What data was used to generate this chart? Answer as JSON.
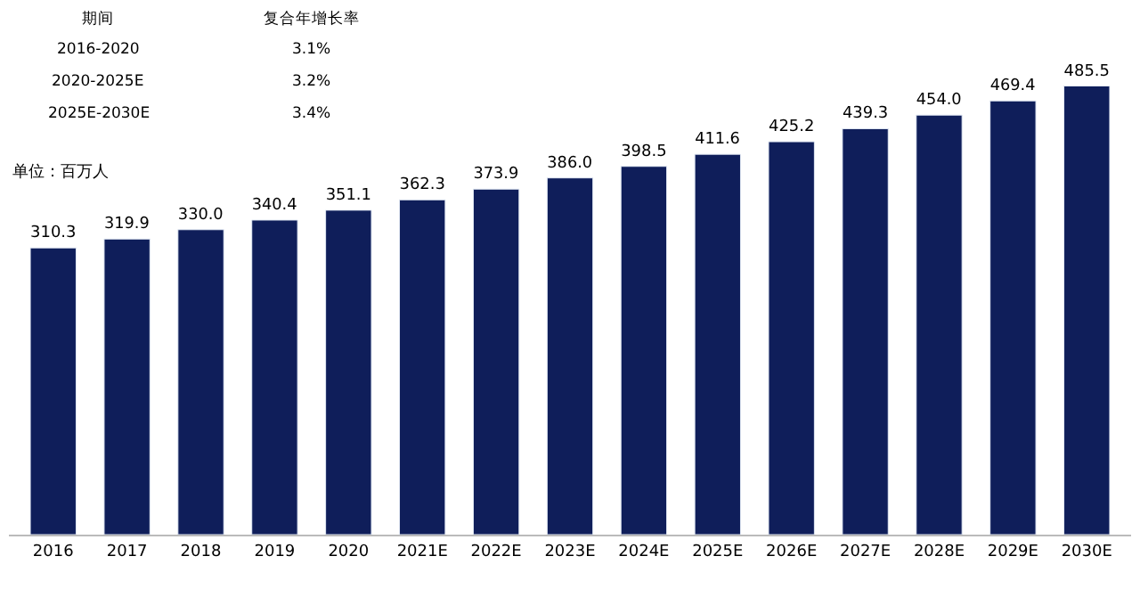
{
  "chart_data": {
    "type": "bar",
    "categories": [
      "2016",
      "2017",
      "2018",
      "2019",
      "2020",
      "2021E",
      "2022E",
      "2023E",
      "2024E",
      "2025E",
      "2026E",
      "2027E",
      "2028E",
      "2029E",
      "2030E"
    ],
    "values": [
      310.3,
      319.9,
      330.0,
      340.4,
      351.1,
      362.3,
      373.9,
      386.0,
      398.5,
      411.6,
      425.2,
      439.3,
      454.0,
      469.4,
      485.5
    ],
    "color": "#0f1e5a",
    "value_labels": [
      "310.3",
      "319.9",
      "330.0",
      "340.4",
      "351.1",
      "362.3",
      "373.9",
      "386.0",
      "398.5",
      "411.6",
      "425.2",
      "439.3",
      "454.0",
      "469.4",
      "485.5"
    ],
    "tick_labels": "x",
    "annotations": [
      "期间",
      "复合年增长率",
      "2016-2020",
      "3.1%",
      "2020-2025E",
      "3.2%",
      "2025E-2030E",
      "3.4%",
      "单位：百万人"
    ]
  }
}
